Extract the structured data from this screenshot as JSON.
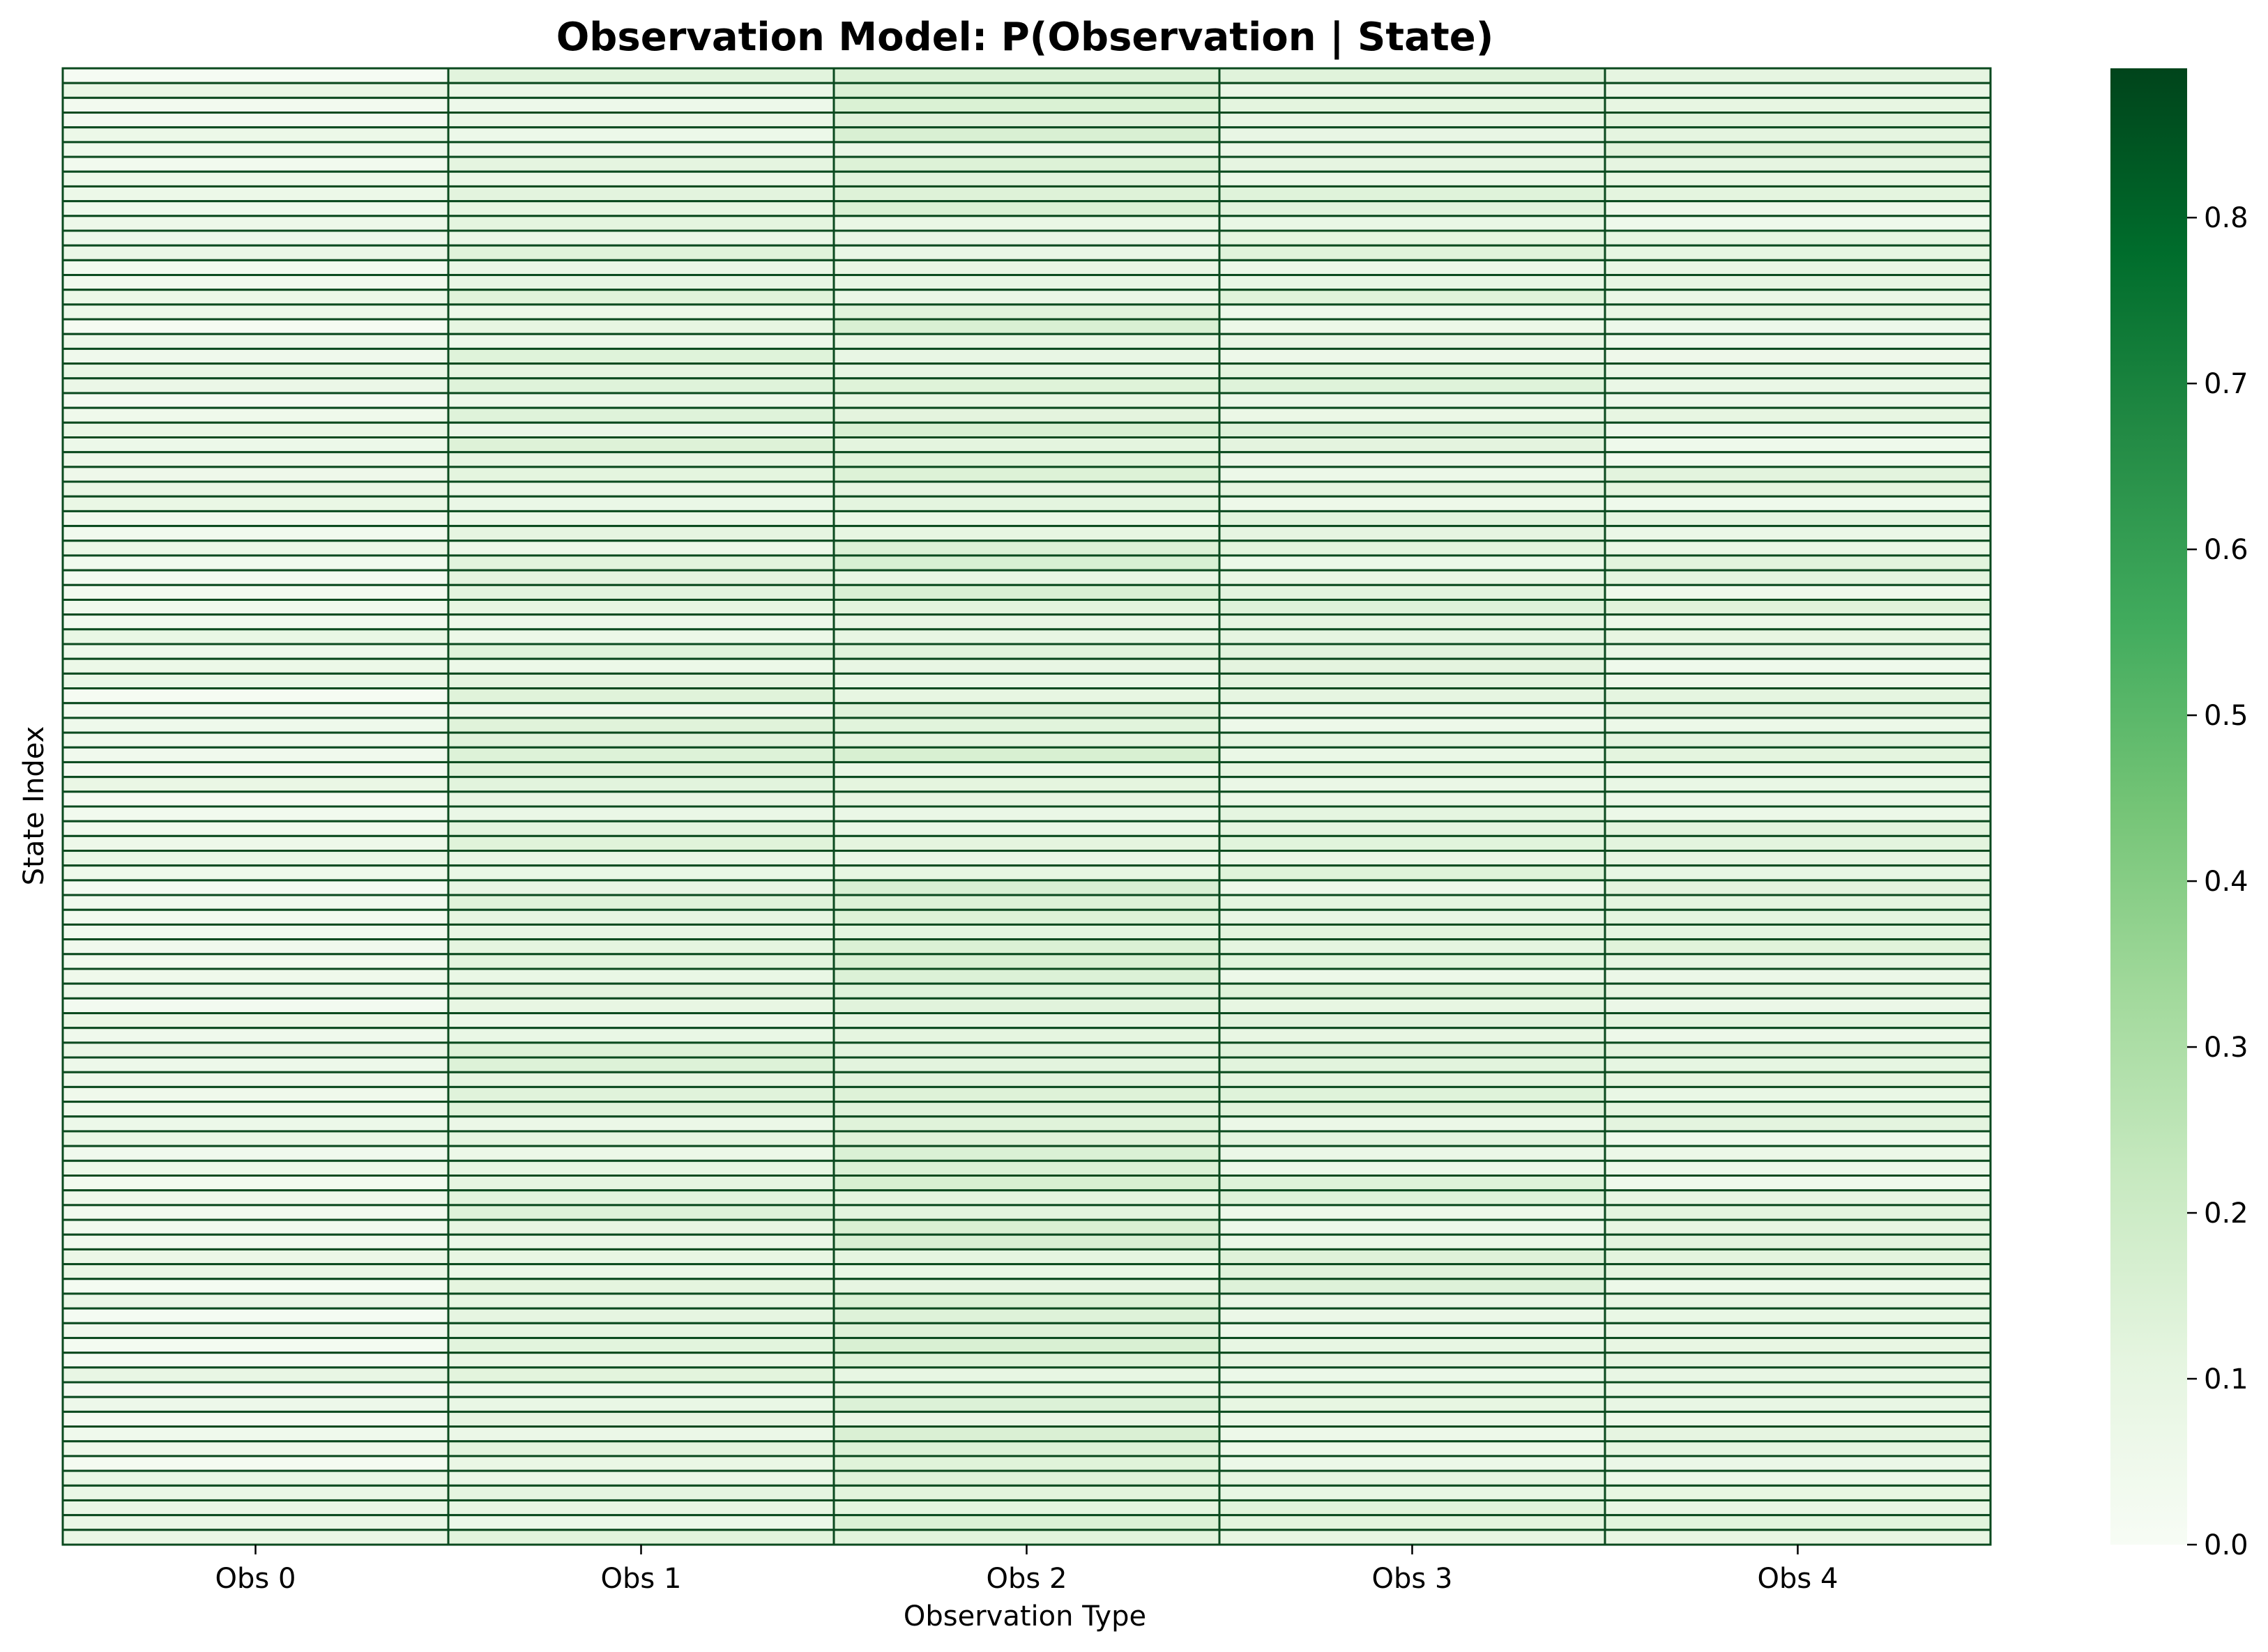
{
  "chart_data": {
    "type": "heatmap",
    "title": "Observation Model: P(Observation | State)",
    "xlabel": "Observation Type",
    "ylabel": "State Index",
    "x_categories": [
      "Obs 0",
      "Obs 1",
      "Obs 2",
      "Obs 3",
      "Obs 4"
    ],
    "y_tick_labels_shown": false,
    "colormap": "Greens",
    "cell_edge_color": "#0b4a1f",
    "colorbar": {
      "vmin": 0.0,
      "vmax": 0.89,
      "ticks": [
        0.0,
        0.1,
        0.2,
        0.3,
        0.4,
        0.5,
        0.6,
        0.7,
        0.8
      ],
      "tick_labels": [
        "0.0",
        "0.1",
        "0.2",
        "0.3",
        "0.4",
        "0.5",
        "0.6",
        "0.7",
        "0.8"
      ],
      "gradient_colors": [
        "#f7fcf5",
        "#e5f5e0",
        "#c7e9c0",
        "#a1d99b",
        "#74c476",
        "#41ab5d",
        "#238b45",
        "#006d2c",
        "#00441b"
      ]
    },
    "num_rows": 100,
    "column_mean_values": [
      0.05,
      0.1,
      0.12,
      0.1,
      0.09
    ],
    "grid": false,
    "legend": "colorbar-right"
  }
}
